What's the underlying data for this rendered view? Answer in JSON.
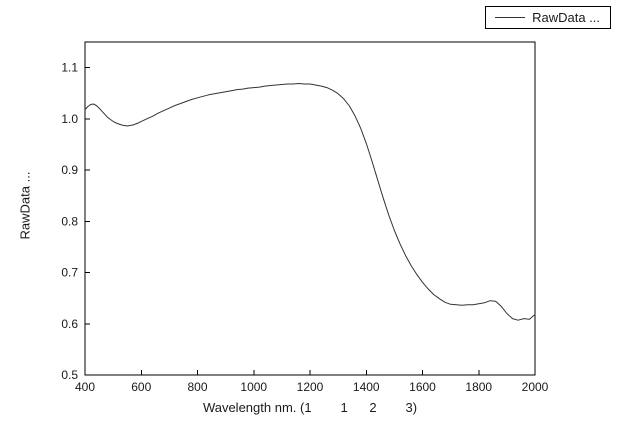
{
  "legend": {
    "label": "RawData ..."
  },
  "axes": {
    "x_title": "Wavelength nm. (1        1      2        3)",
    "y_title": "RawData ..."
  },
  "chart_data": {
    "type": "line",
    "title": "",
    "xlabel": "Wavelength nm. (1        1      2        3)",
    "ylabel": "RawData ...",
    "xlim": [
      400,
      2000
    ],
    "ylim": [
      0.5,
      1.15
    ],
    "x_ticks": [
      400,
      600,
      800,
      1000,
      1200,
      1400,
      1600,
      1800,
      2000
    ],
    "y_ticks": [
      0.5,
      0.6,
      0.7,
      0.8,
      0.9,
      1.0,
      1.1
    ],
    "grid": false,
    "legend_position": "top-right-outside",
    "frame_color": "#000000",
    "series": [
      {
        "name": "RawData ...",
        "color": "#333333",
        "points": [
          [
            400,
            1.018
          ],
          [
            410,
            1.024
          ],
          [
            420,
            1.028
          ],
          [
            430,
            1.029
          ],
          [
            440,
            1.026
          ],
          [
            450,
            1.021
          ],
          [
            460,
            1.015
          ],
          [
            470,
            1.009
          ],
          [
            480,
            1.003
          ],
          [
            490,
            0.999
          ],
          [
            500,
            0.995
          ],
          [
            510,
            0.992
          ],
          [
            520,
            0.99
          ],
          [
            530,
            0.988
          ],
          [
            540,
            0.987
          ],
          [
            550,
            0.986
          ],
          [
            560,
            0.987
          ],
          [
            570,
            0.988
          ],
          [
            580,
            0.99
          ],
          [
            590,
            0.992
          ],
          [
            600,
            0.995
          ],
          [
            620,
            1.0
          ],
          [
            640,
            1.005
          ],
          [
            660,
            1.011
          ],
          [
            680,
            1.016
          ],
          [
            700,
            1.021
          ],
          [
            720,
            1.026
          ],
          [
            740,
            1.03
          ],
          [
            760,
            1.034
          ],
          [
            780,
            1.038
          ],
          [
            800,
            1.041
          ],
          [
            820,
            1.044
          ],
          [
            840,
            1.047
          ],
          [
            860,
            1.049
          ],
          [
            880,
            1.051
          ],
          [
            900,
            1.053
          ],
          [
            920,
            1.055
          ],
          [
            940,
            1.057
          ],
          [
            960,
            1.058
          ],
          [
            980,
            1.06
          ],
          [
            1000,
            1.061
          ],
          [
            1020,
            1.062
          ],
          [
            1040,
            1.064
          ],
          [
            1060,
            1.065
          ],
          [
            1080,
            1.066
          ],
          [
            1100,
            1.067
          ],
          [
            1120,
            1.068
          ],
          [
            1140,
            1.068
          ],
          [
            1160,
            1.069
          ],
          [
            1180,
            1.068
          ],
          [
            1200,
            1.068
          ],
          [
            1220,
            1.066
          ],
          [
            1240,
            1.064
          ],
          [
            1260,
            1.061
          ],
          [
            1280,
            1.056
          ],
          [
            1300,
            1.049
          ],
          [
            1320,
            1.039
          ],
          [
            1340,
            1.025
          ],
          [
            1360,
            1.006
          ],
          [
            1380,
            0.982
          ],
          [
            1400,
            0.952
          ],
          [
            1420,
            0.918
          ],
          [
            1440,
            0.882
          ],
          [
            1460,
            0.846
          ],
          [
            1480,
            0.812
          ],
          [
            1500,
            0.782
          ],
          [
            1520,
            0.756
          ],
          [
            1540,
            0.733
          ],
          [
            1560,
            0.713
          ],
          [
            1580,
            0.696
          ],
          [
            1600,
            0.681
          ],
          [
            1620,
            0.668
          ],
          [
            1640,
            0.657
          ],
          [
            1660,
            0.649
          ],
          [
            1680,
            0.642
          ],
          [
            1700,
            0.638
          ],
          [
            1720,
            0.637
          ],
          [
            1740,
            0.636
          ],
          [
            1760,
            0.637
          ],
          [
            1780,
            0.637
          ],
          [
            1800,
            0.639
          ],
          [
            1820,
            0.641
          ],
          [
            1840,
            0.645
          ],
          [
            1860,
            0.644
          ],
          [
            1880,
            0.634
          ],
          [
            1900,
            0.62
          ],
          [
            1920,
            0.61
          ],
          [
            1940,
            0.607
          ],
          [
            1960,
            0.61
          ],
          [
            1980,
            0.609
          ],
          [
            2000,
            0.618
          ]
        ]
      }
    ]
  }
}
